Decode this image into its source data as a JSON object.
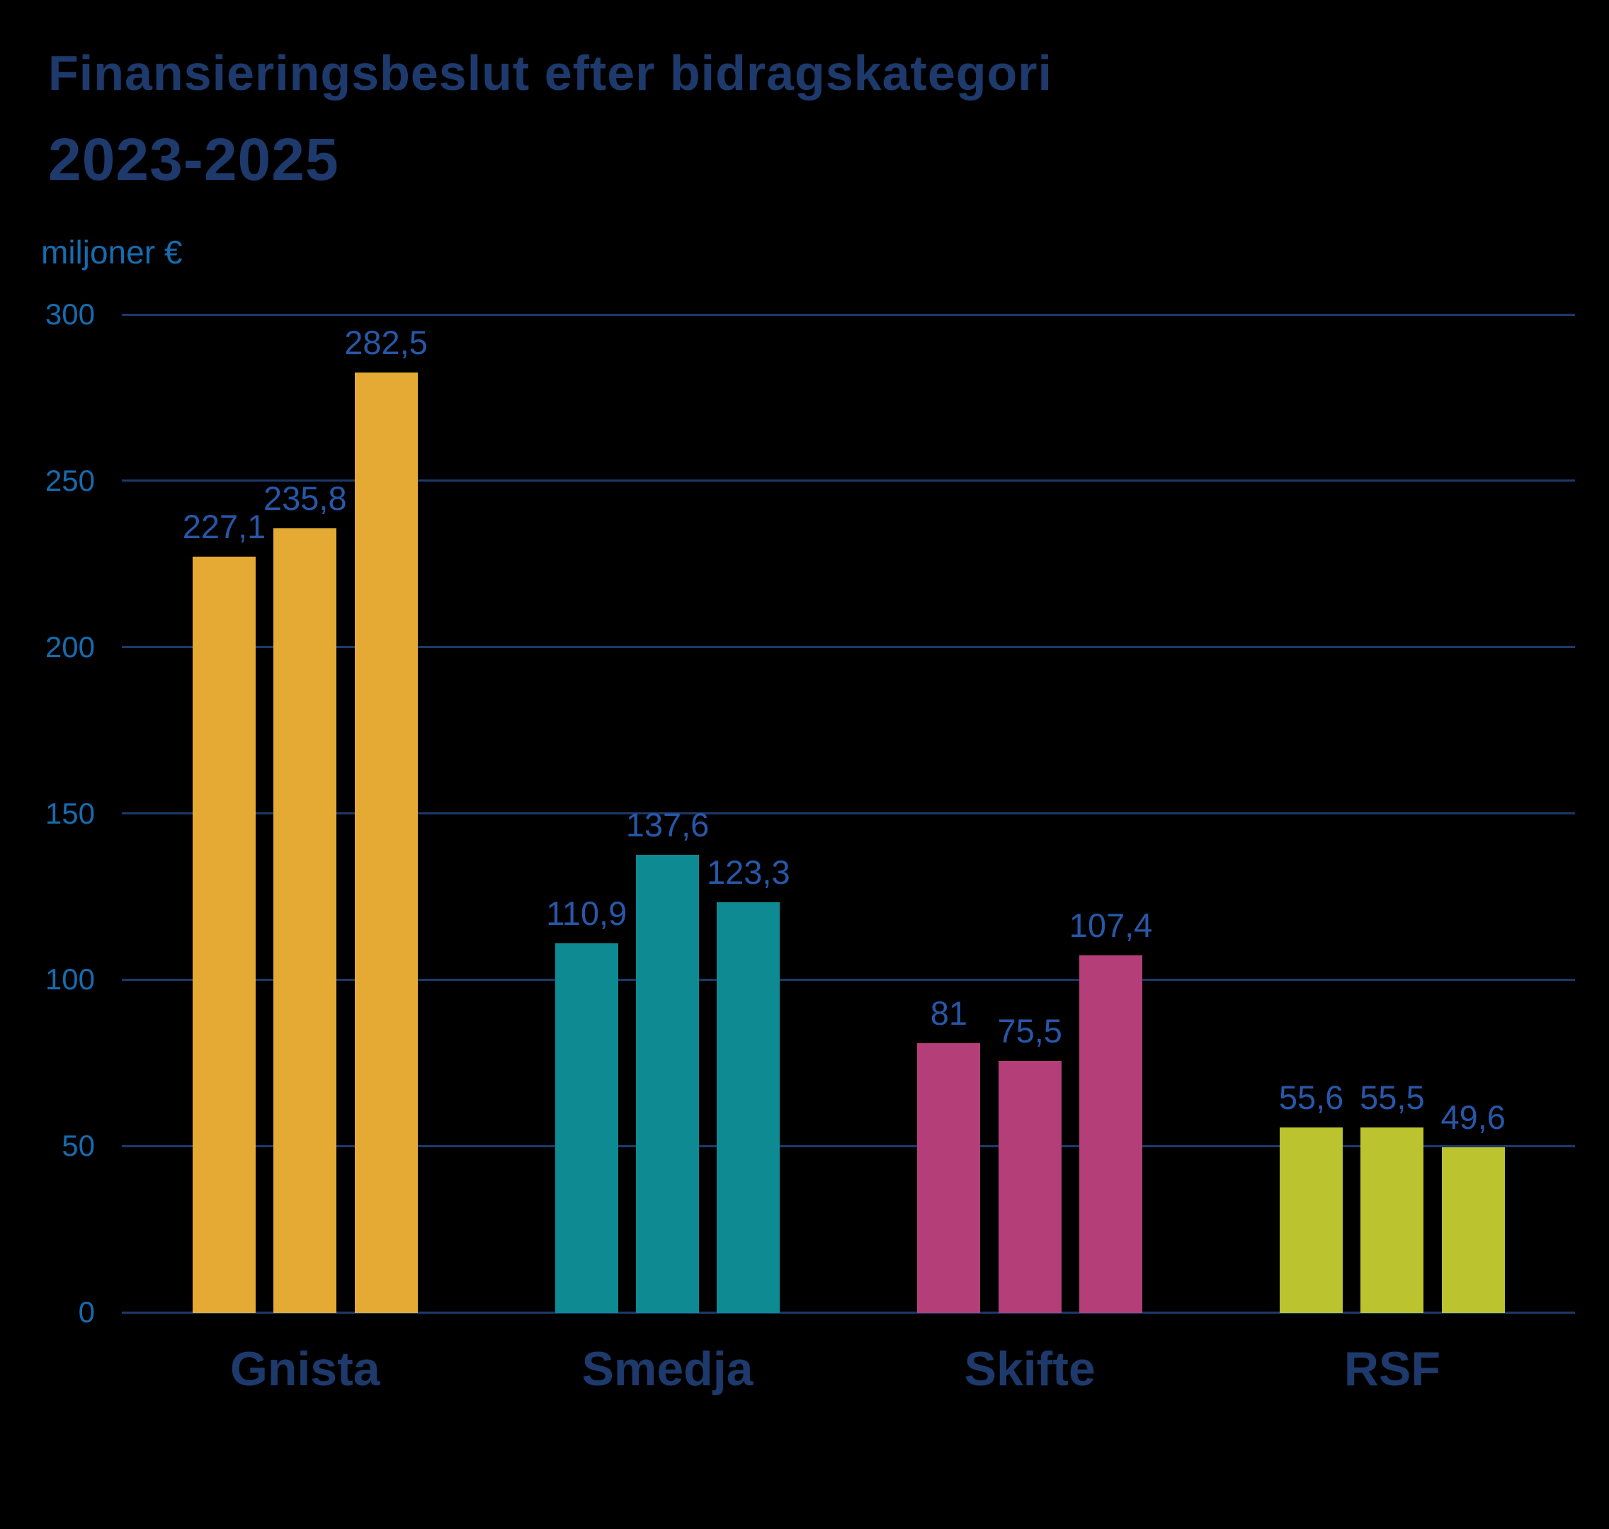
{
  "header": {
    "title_line1": "Finansieringsbeslut efter bidragskategori",
    "title_line2": "2023-2025"
  },
  "colors": {
    "background": "#000000",
    "title_text": "#1E3A6C",
    "axis_text": "#176BAE",
    "value_text": "#2857A8",
    "gridline": "#1C3A6B"
  },
  "chart_data": {
    "type": "bar",
    "title": "Finansieringsbeslut efter bidragskategori 2023-2025",
    "ylabel": "miljoner €",
    "xlabel": "",
    "ylim": [
      0,
      300
    ],
    "ytick_values": [
      300,
      250,
      200,
      150,
      100,
      50,
      0
    ],
    "ytick_labels": [
      "300",
      "250",
      "200",
      "150",
      "100",
      "50",
      "0"
    ],
    "grid": "horizontal",
    "legend": "none",
    "bars_per_category": 3,
    "categories": [
      "Gnista",
      "Smedja",
      "Skifte",
      "RSF"
    ],
    "series": [
      {
        "category": "Gnista",
        "color": "#E4AA33",
        "values": [
          227.1,
          235.8,
          282.5
        ],
        "value_labels": [
          "227,1",
          "235,8",
          "282,5"
        ]
      },
      {
        "category": "Smedja",
        "color": "#0E8A92",
        "values": [
          110.9,
          137.6,
          123.3
        ],
        "value_labels": [
          "110,9",
          "137,6",
          "123,3"
        ]
      },
      {
        "category": "Skifte",
        "color": "#B43E78",
        "values": [
          81,
          75.5,
          107.4
        ],
        "value_labels": [
          "81",
          "75,5",
          "107,4"
        ]
      },
      {
        "category": "RSF",
        "color": "#BBC32F",
        "values": [
          55.6,
          55.5,
          49.6
        ],
        "value_labels": [
          "55,6",
          "55,5",
          "49,6"
        ]
      }
    ]
  }
}
